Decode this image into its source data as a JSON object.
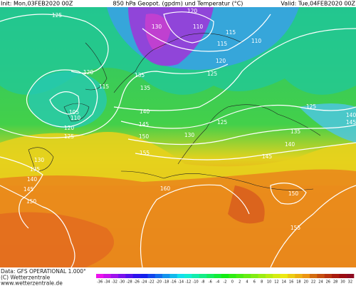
{
  "header": {
    "init": "Init: Mon,03FEB2020 00Z",
    "title": "850 hPa Geopot. (gpdm) und Temperatur (°C)",
    "valid": "Valid: Tue,04FEB2020 00Z"
  },
  "footer": {
    "data": "Data: GFS OPERATIONAL 1.000°",
    "copyright": "(C) Wetterzentrale",
    "url": "www.wetterzentrale.de"
  },
  "colorbar": {
    "ticks": [
      -36,
      -34,
      -32,
      -30,
      -28,
      -26,
      -24,
      -22,
      -20,
      -18,
      -16,
      -14,
      -12,
      -10,
      -8,
      -6,
      -4,
      -2,
      0,
      2,
      4,
      6,
      8,
      10,
      12,
      14,
      16,
      18,
      20,
      22,
      24,
      26,
      28,
      30,
      32
    ]
  },
  "contour_labels": [
    125,
    120,
    130,
    110,
    115,
    115,
    110,
    120,
    115,
    135,
    125,
    120,
    135,
    105,
    110,
    120,
    125,
    140,
    145,
    150,
    130,
    125,
    125,
    135,
    140,
    145,
    155,
    130,
    135,
    140,
    145,
    150,
    160,
    150,
    155,
    140,
    145
  ]
}
